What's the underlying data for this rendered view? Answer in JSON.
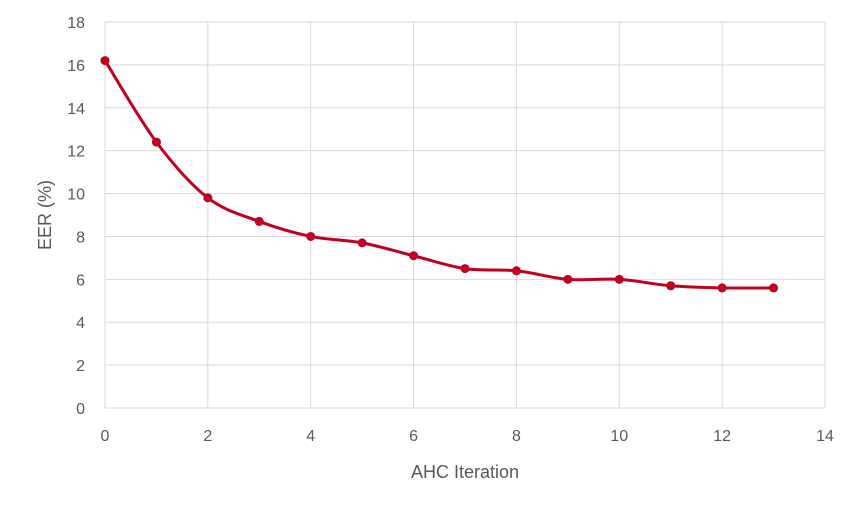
{
  "chart_data": {
    "type": "line",
    "title": "",
    "xlabel": "AHC Iteration",
    "ylabel": "EER (%)",
    "xlim": [
      0,
      14
    ],
    "ylim": [
      0,
      18
    ],
    "xticks": [
      0,
      2,
      4,
      6,
      8,
      10,
      12,
      14
    ],
    "yticks": [
      0,
      2,
      4,
      6,
      8,
      10,
      12,
      14,
      16,
      18
    ],
    "grid": true,
    "legend": "none",
    "smoothed": true,
    "series": [
      {
        "color": "#c00020",
        "x": [
          0,
          1,
          2,
          3,
          4,
          5,
          6,
          7,
          8,
          9,
          10,
          11,
          12,
          13
        ],
        "y": [
          16.2,
          12.4,
          9.8,
          8.7,
          8.0,
          7.7,
          7.1,
          6.5,
          6.4,
          6.0,
          6.0,
          5.7,
          5.6,
          5.6
        ]
      }
    ]
  }
}
